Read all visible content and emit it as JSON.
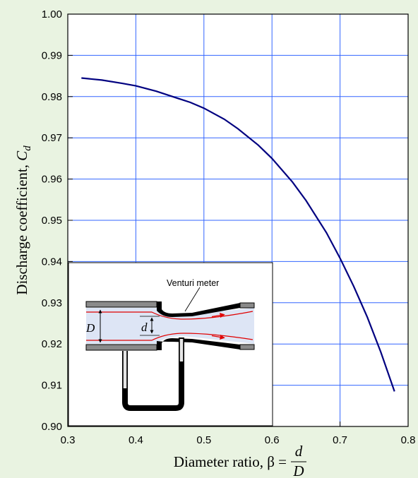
{
  "chart_data": {
    "type": "line",
    "xlabel_prefix": "Diameter ratio, β =",
    "xlabel_num": "d",
    "xlabel_den": "D",
    "ylabel_main": "Discharge coefficient,",
    "ylabel_sym": "C",
    "ylabel_sub": "d",
    "xlim": [
      0.3,
      0.8
    ],
    "ylim": [
      0.9,
      1.0
    ],
    "x_ticks": [
      "0.3",
      "0.4",
      "0.5",
      "0.6",
      "0.7",
      "0.8"
    ],
    "y_ticks": [
      "0.90",
      "0.91",
      "0.92",
      "0.93",
      "0.94",
      "0.95",
      "0.96",
      "0.97",
      "0.98",
      "0.99",
      "1.00"
    ],
    "grid": true,
    "line_color": "#000080",
    "grid_color": "#3366ff",
    "series": [
      {
        "x": [
          0.32,
          0.35,
          0.38,
          0.4,
          0.43,
          0.45,
          0.48,
          0.5,
          0.53,
          0.55,
          0.58,
          0.6,
          0.63,
          0.65,
          0.68,
          0.7,
          0.72,
          0.74,
          0.76,
          0.78
        ],
        "y": [
          0.9845,
          0.984,
          0.9832,
          0.9826,
          0.9813,
          0.9802,
          0.9786,
          0.9772,
          0.9745,
          0.9722,
          0.9682,
          0.965,
          0.9593,
          0.9548,
          0.947,
          0.9408,
          0.934,
          0.9265,
          0.918,
          0.9085
        ]
      }
    ],
    "inset": {
      "label": "Venturi meter",
      "var_large": "D",
      "var_small": "d"
    }
  }
}
